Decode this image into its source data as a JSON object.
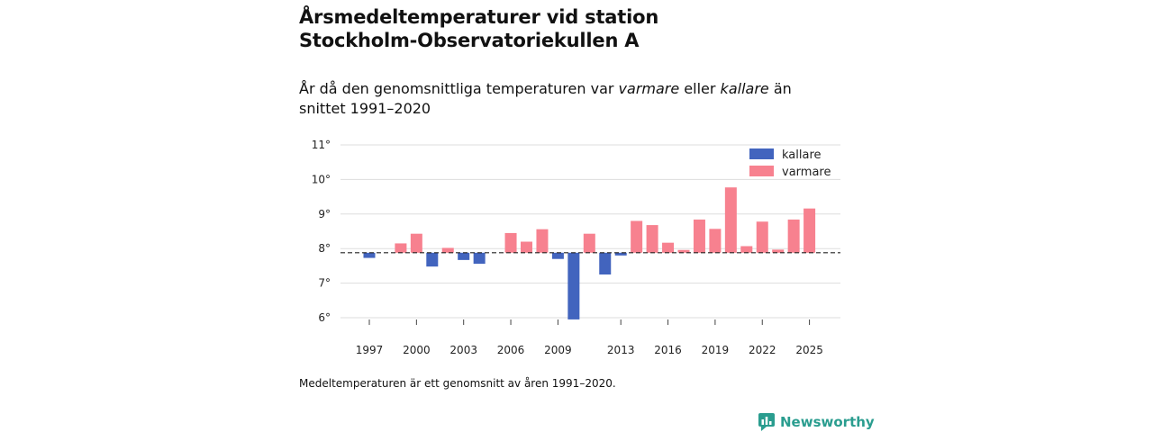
{
  "title_line1": "Årsmedeltemperaturer vid station",
  "title_line2": "Stockholm-Observatoriekullen A",
  "subtitle": {
    "part1": "År då den genomsnittliga temperaturen var ",
    "warmer": "varmare",
    "part2": " eller ",
    "colder": "kallare",
    "part3": " än snittet 1991–2020"
  },
  "footnote": "Medeltemperaturen är ett genomsnitt av åren 1991–2020.",
  "brand": {
    "name": "Newsworthy",
    "icon": "newsworthy-logo-icon"
  },
  "colors": {
    "kallare": "#4264be",
    "varmare": "#f7818f",
    "grid": "#dddddd",
    "baseline": "#222222"
  },
  "chart_data": {
    "type": "bar",
    "title": "Årsmedeltemperaturer vid station Stockholm-Observatoriekullen A",
    "xlabel": "",
    "ylabel": "",
    "baseline": 7.88,
    "ylim": [
      5.8,
      11.2
    ],
    "yticks": [
      6,
      7,
      8,
      9,
      10,
      11
    ],
    "ytick_labels": [
      "6°",
      "7°",
      "8°",
      "9°",
      "10°",
      "11°"
    ],
    "xticks": [
      1997,
      2000,
      2003,
      2006,
      2009,
      2013,
      2016,
      2019,
      2022,
      2025
    ],
    "legend": [
      {
        "key": "kallare",
        "label": "kallare"
      },
      {
        "key": "varmare",
        "label": "varmare"
      }
    ],
    "legend_position": "top-right",
    "years": [
      1997,
      1998,
      1999,
      2000,
      2001,
      2002,
      2003,
      2004,
      2005,
      2006,
      2007,
      2008,
      2009,
      2010,
      2011,
      2012,
      2013,
      2014,
      2015,
      2016,
      2017,
      2018,
      2019,
      2020,
      2021,
      2022,
      2023,
      2024,
      2025
    ],
    "values": [
      7.73,
      null,
      8.15,
      8.43,
      7.48,
      8.02,
      7.67,
      7.56,
      null,
      8.45,
      8.2,
      8.56,
      7.7,
      5.95,
      8.43,
      7.25,
      7.8,
      8.8,
      8.68,
      8.17,
      7.96,
      8.84,
      8.57,
      9.77,
      8.07,
      8.78,
      7.97,
      8.84,
      9.16
    ]
  }
}
